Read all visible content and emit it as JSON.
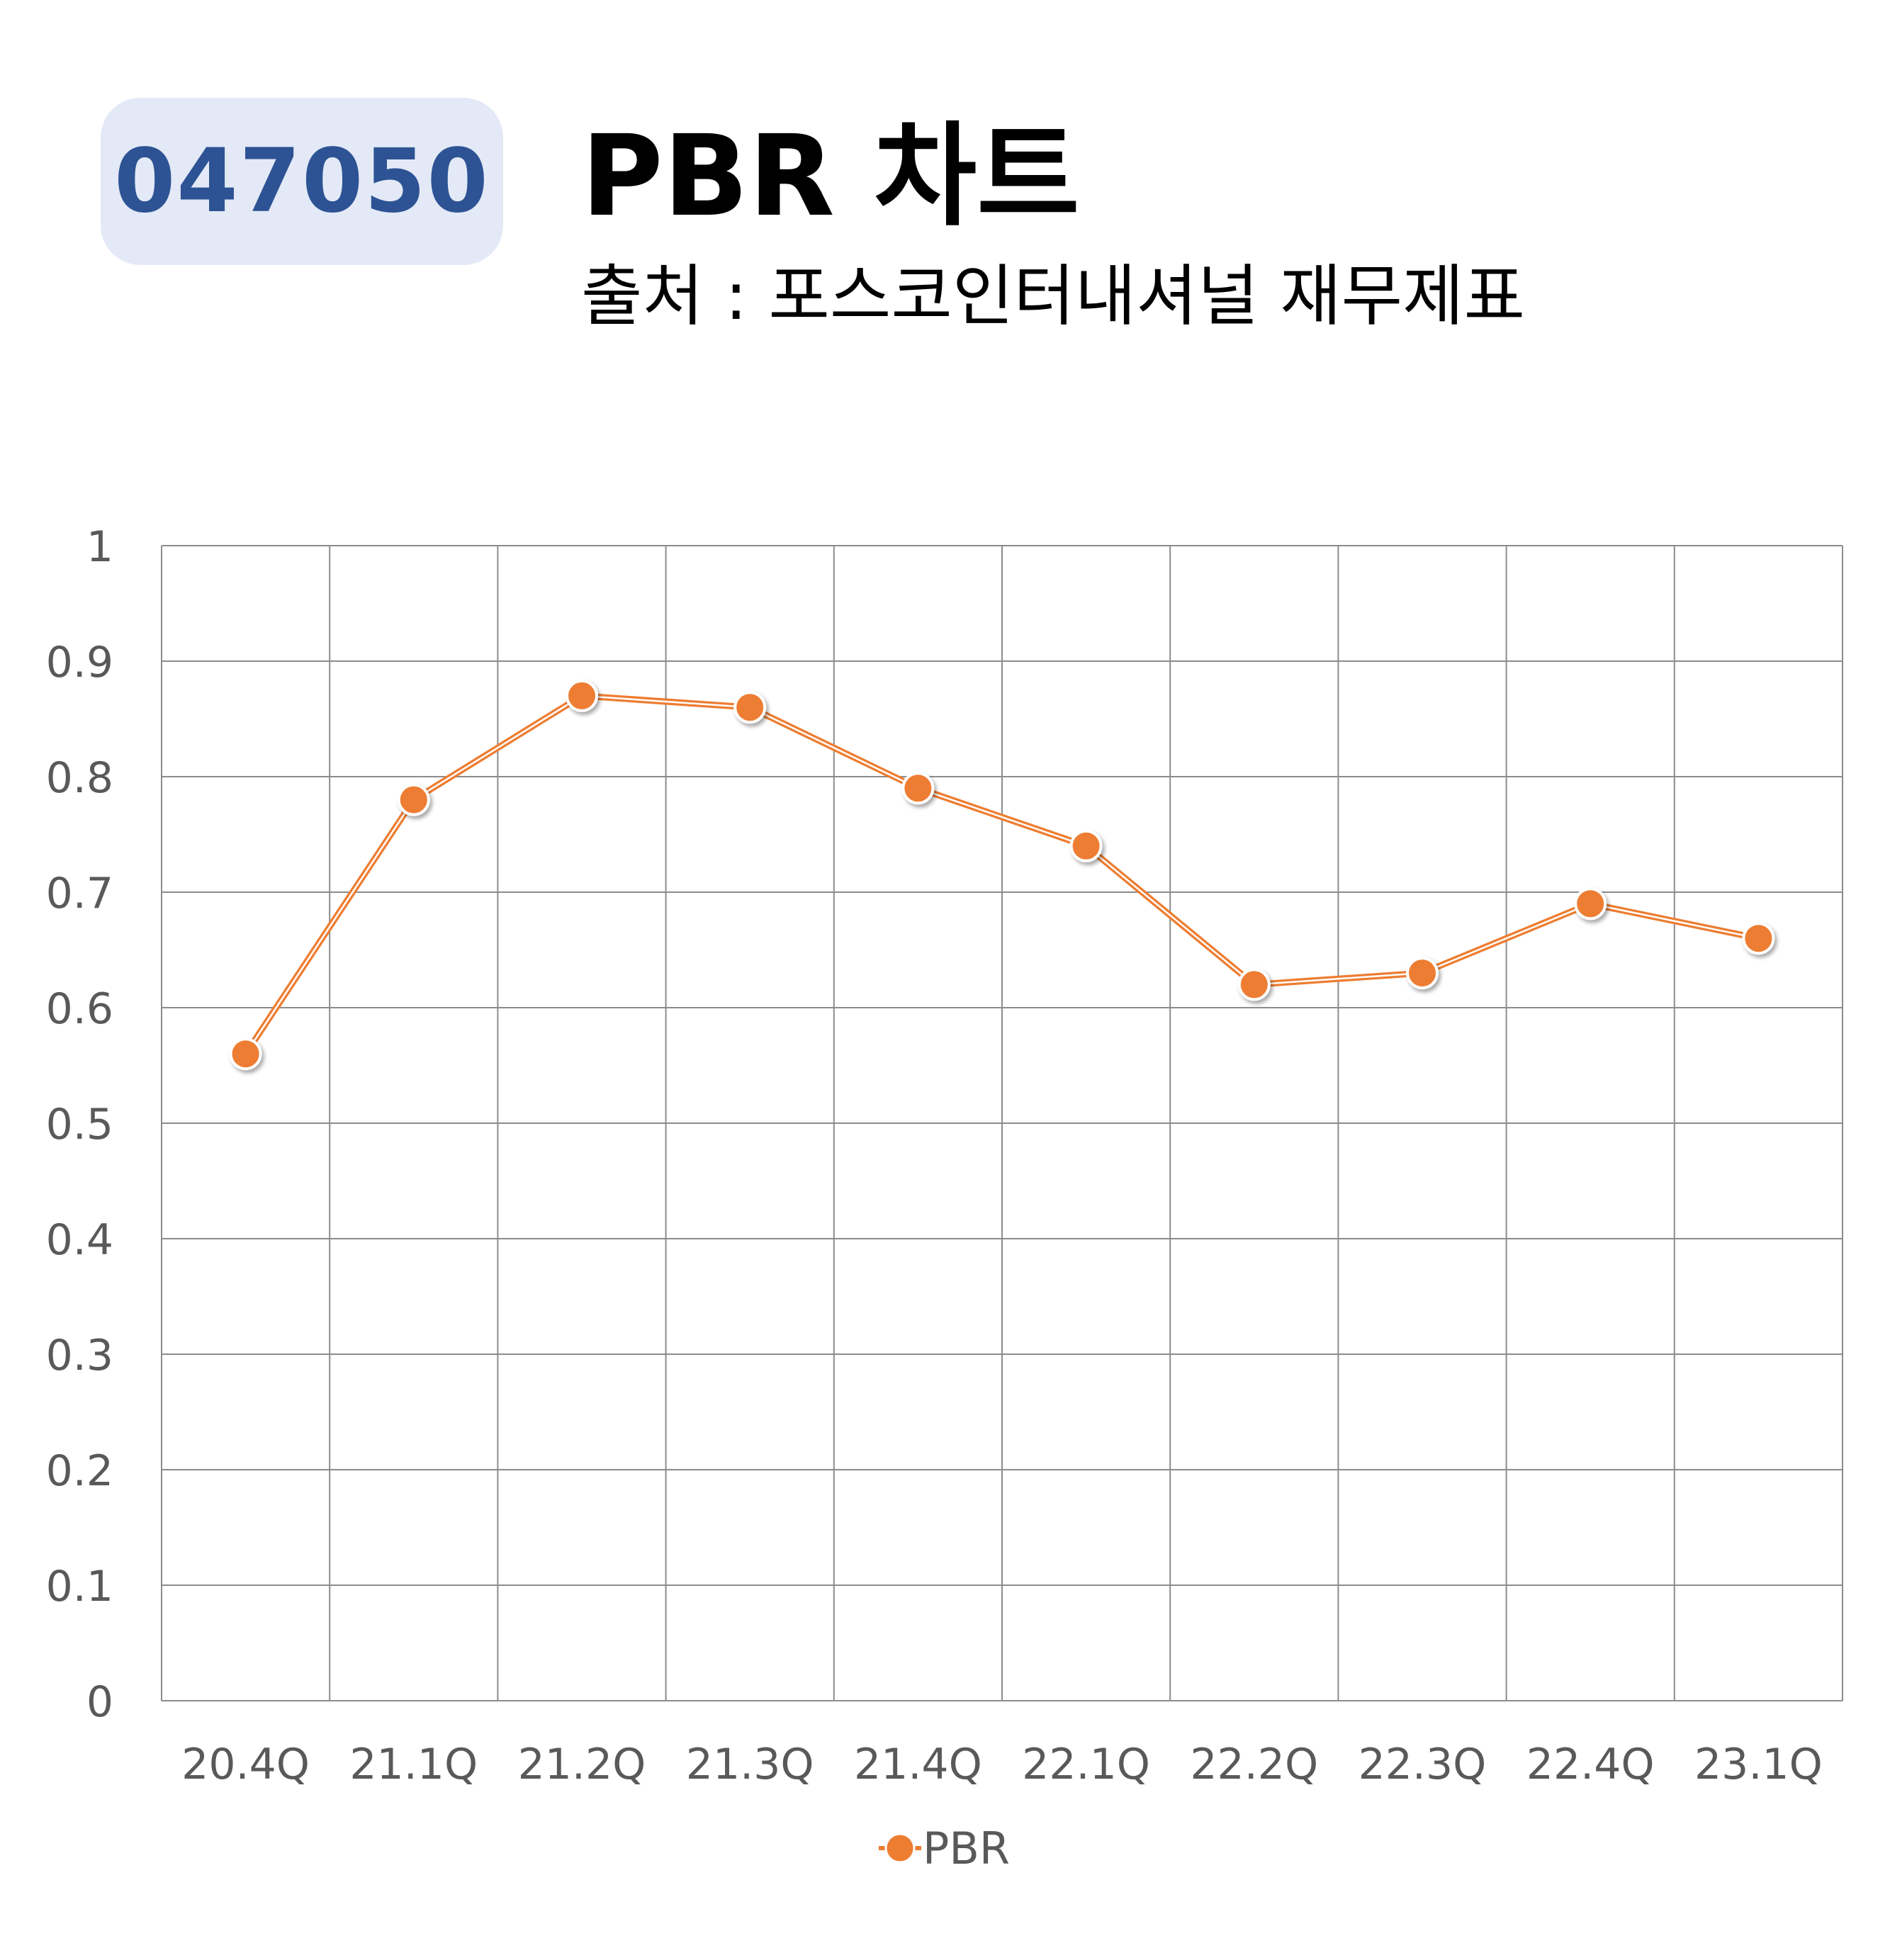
{
  "badge": {
    "code": "047050"
  },
  "header": {
    "title": "PBR 차트",
    "subtitle": "출처 : 포스코인터내셔널 재무제표"
  },
  "colors": {
    "accent": "#ed7d31",
    "grid": "#8c8c8c",
    "badge_bg": "#e3e9f6",
    "badge_text": "#2d5394",
    "tick_text": "#595959"
  },
  "chart_data": {
    "type": "line",
    "categories": [
      "20.4Q",
      "21.1Q",
      "21.2Q",
      "21.3Q",
      "21.4Q",
      "22.1Q",
      "22.2Q",
      "22.3Q",
      "22.4Q",
      "23.1Q"
    ],
    "series": [
      {
        "name": "PBR",
        "values": [
          0.56,
          0.78,
          0.87,
          0.86,
          0.79,
          0.74,
          0.62,
          0.63,
          0.69,
          0.66
        ]
      }
    ],
    "ylim": [
      0,
      1
    ],
    "yticks": [
      "0",
      "0.1",
      "0.2",
      "0.3",
      "0.4",
      "0.5",
      "0.6",
      "0.7",
      "0.8",
      "0.9",
      "1"
    ],
    "grid": true,
    "legend": "bottom-center"
  }
}
